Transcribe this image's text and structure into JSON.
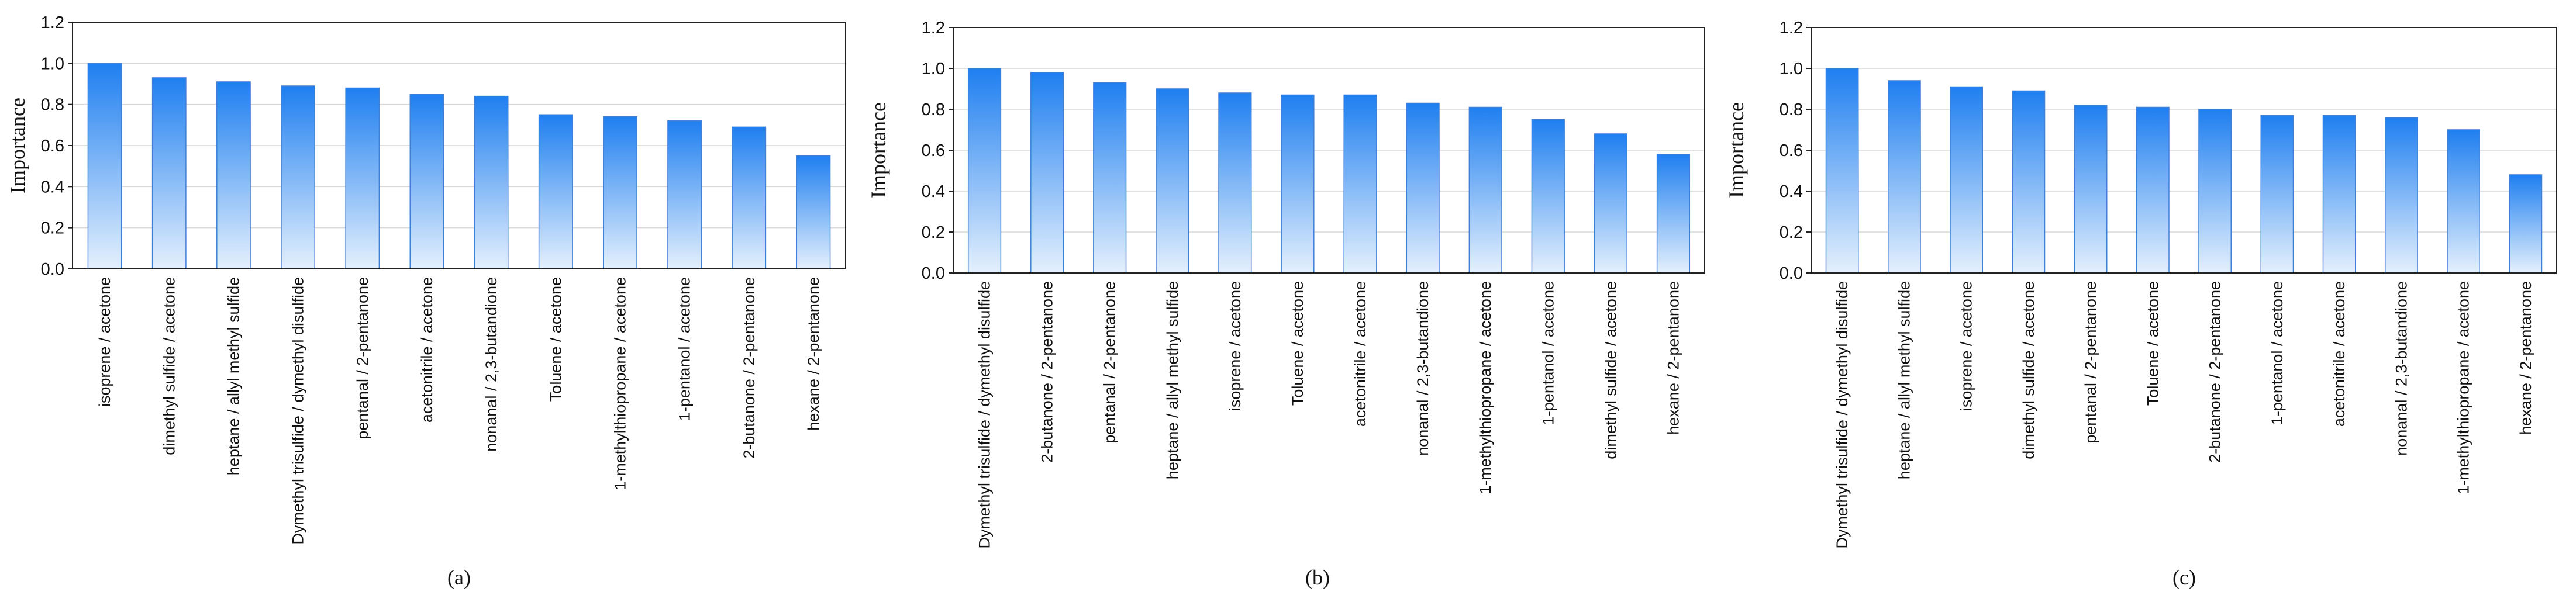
{
  "colors": {
    "bar_top": "#1f7ff0",
    "bar_bottom": "#e4f0fd",
    "bar_edge": "#3f7fd6",
    "grid": "#d9d9d9",
    "axis": "#222222",
    "text": "#111111"
  },
  "chart_data": [
    {
      "type": "bar",
      "panel_label": "(a)",
      "ylabel": "Importance",
      "xlabel": "",
      "title": "",
      "ylim": [
        0,
        1.2
      ],
      "yticks": [
        "0.0",
        "0.2",
        "0.4",
        "0.6",
        "0.8",
        "1.0",
        "1.2"
      ],
      "grid": true,
      "categories": [
        "isoprene / acetone",
        "dimethyl sulfide / acetone",
        "heptane / allyl methyl sulfide",
        "Dymethyl trisulfide / dymethyl disulfide",
        "pentanal / 2-pentanone",
        "acetonitrile / acetone",
        "nonanal / 2,3-butandione",
        "Toluene / acetone",
        "1-methylthiopropane / acetone",
        "1-pentanol / acetone",
        "2-butanone / 2-pentanone",
        "hexane / 2-pentanone"
      ],
      "values": [
        1.0,
        0.93,
        0.91,
        0.89,
        0.88,
        0.85,
        0.84,
        0.75,
        0.74,
        0.72,
        0.69,
        0.55
      ]
    },
    {
      "type": "bar",
      "panel_label": "(b)",
      "ylabel": "Importance",
      "xlabel": "",
      "title": "",
      "ylim": [
        0,
        1.2
      ],
      "yticks": [
        "0.0",
        "0.2",
        "0.4",
        "0.6",
        "0.8",
        "1.0",
        "1.2"
      ],
      "grid": true,
      "categories": [
        "Dymethyl trisulfide / dymethyl disulfide",
        "2-butanone / 2-pentanone",
        "pentanal / 2-pentanone",
        "heptane / allyl methyl sulfide",
        "isoprene / acetone",
        "Toluene / acetone",
        "acetonitrile / acetone",
        "nonanal / 2,3-butandione",
        "1-methylthiopropane / acetone",
        "1-pentanol / acetone",
        "dimethyl sulfide / acetone",
        "hexane / 2-pentanone"
      ],
      "values": [
        1.0,
        0.98,
        0.93,
        0.9,
        0.88,
        0.87,
        0.87,
        0.83,
        0.81,
        0.75,
        0.68,
        0.58
      ]
    },
    {
      "type": "bar",
      "panel_label": "(c)",
      "ylabel": "Importance",
      "xlabel": "",
      "title": "",
      "ylim": [
        0,
        1.2
      ],
      "yticks": [
        "0.0",
        "0.2",
        "0.4",
        "0.6",
        "0.8",
        "1.0",
        "1.2"
      ],
      "grid": true,
      "categories": [
        "Dymethyl trisulfide / dymethyl disulfide",
        "heptane / allyl methyl sulfide",
        "isoprene / acetone",
        "dimethyl sulfide / acetone",
        "pentanal / 2-pentanone",
        "Toluene / acetone",
        "2-butanone / 2-pentanone",
        "1-pentanol / acetone",
        "acetonitrile / acetone",
        "nonanal / 2,3-butandione",
        "1-methylthiopropane / acetone",
        "hexane / 2-pentanone"
      ],
      "values": [
        1.0,
        0.94,
        0.91,
        0.89,
        0.82,
        0.81,
        0.8,
        0.77,
        0.77,
        0.76,
        0.7,
        0.48
      ]
    }
  ]
}
